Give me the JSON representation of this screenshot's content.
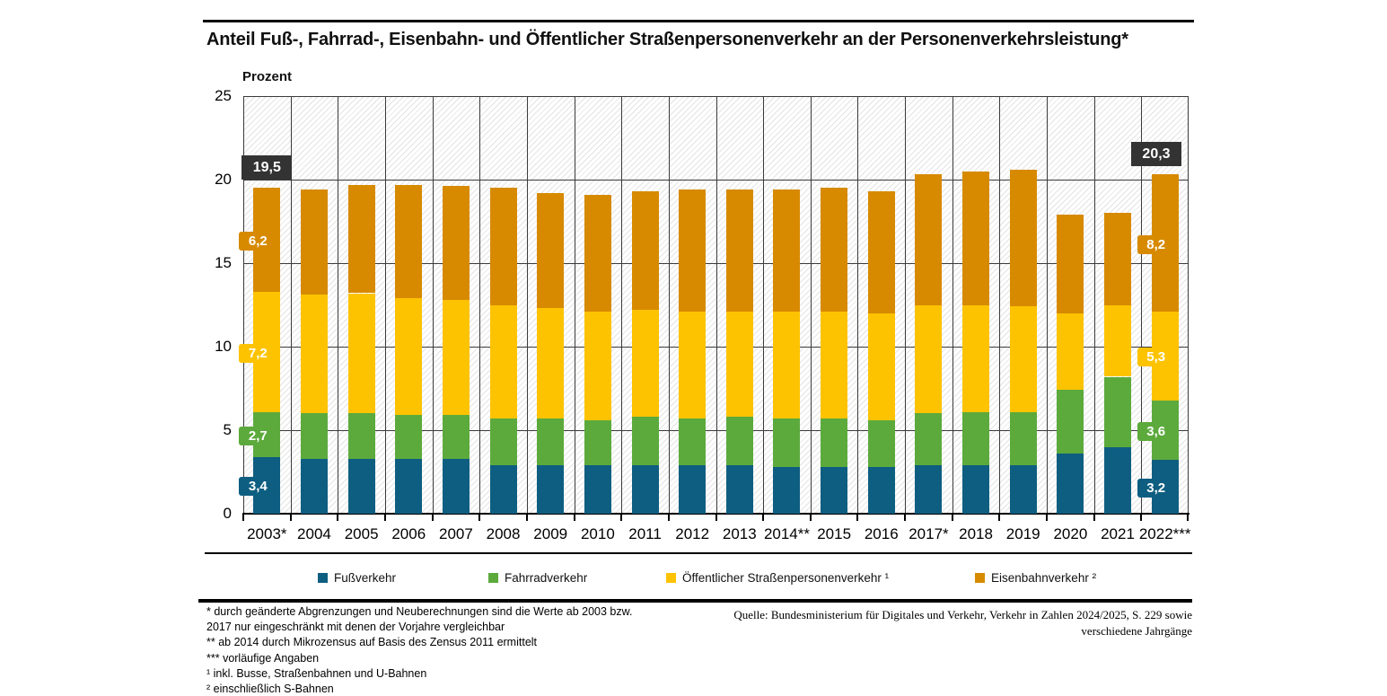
{
  "header": {
    "title": "Anteil Fuß-, Fahrrad-, Eisenbahn- und Öffentlicher Straßenpersonenverkehr an der Personenverkehrsleistung*"
  },
  "chart": {
    "y_axis_title": "Prozent"
  },
  "chart_data": {
    "type": "bar",
    "stacked": true,
    "title": "Anteil Fuß-, Fahrrad-, Eisenbahn- und Öffentlicher Straßenpersonenverkehr an der Personenverkehrsleistung*",
    "ylabel": "Prozent",
    "ylim": [
      0,
      25
    ],
    "yticks": [
      0,
      5,
      10,
      15,
      20,
      25
    ],
    "grid": true,
    "legend_position": "bottom",
    "categories": [
      "2003*",
      "2004",
      "2005",
      "2006",
      "2007",
      "2008",
      "2009",
      "2010",
      "2011",
      "2012",
      "2013",
      "2014**",
      "2015",
      "2016",
      "2017*",
      "2018",
      "2019",
      "2020",
      "2021",
      "2022***"
    ],
    "series": [
      {
        "key": "fussverkehr",
        "name": "Fußverkehr",
        "color": "#0e5e81",
        "values": [
          3.4,
          3.3,
          3.3,
          3.3,
          3.3,
          2.9,
          2.9,
          2.9,
          2.9,
          2.9,
          2.9,
          2.8,
          2.8,
          2.8,
          2.9,
          2.9,
          2.9,
          3.6,
          4.0,
          3.2
        ]
      },
      {
        "key": "fahrradverkehr",
        "name": "Fahrradverkehr",
        "color": "#5caa3c",
        "values": [
          2.7,
          2.7,
          2.7,
          2.6,
          2.6,
          2.8,
          2.8,
          2.7,
          2.9,
          2.8,
          2.9,
          2.9,
          2.9,
          2.8,
          3.1,
          3.2,
          3.2,
          3.8,
          4.2,
          3.6
        ]
      },
      {
        "key": "oespv",
        "name": "Öffentlicher Straßenpersonenverkehr ¹",
        "color": "#fdc300",
        "values": [
          7.2,
          7.1,
          7.2,
          7.0,
          6.9,
          6.8,
          6.6,
          6.5,
          6.4,
          6.4,
          6.3,
          6.4,
          6.4,
          6.4,
          6.5,
          6.4,
          6.3,
          4.6,
          4.3,
          5.3
        ]
      },
      {
        "key": "eisenbahnverkehr",
        "name": "Eisenbahnverkehr ²",
        "color": "#d78a00",
        "values": [
          6.2,
          6.3,
          6.5,
          6.8,
          6.8,
          7.0,
          6.9,
          7.0,
          7.1,
          7.3,
          7.3,
          7.3,
          7.4,
          7.3,
          7.8,
          8.0,
          8.2,
          5.9,
          5.5,
          8.2
        ]
      }
    ],
    "value_labels": {
      "2003*": {
        "total": "19,5",
        "segments": [
          "3,4",
          "2,7",
          "7,2",
          "6,2"
        ]
      },
      "2022***": {
        "total": "20,3",
        "segments": [
          "3,2",
          "3,6",
          "5,3",
          "8,2"
        ]
      }
    }
  },
  "colors": {
    "total_label_box": "#333333",
    "grid_line": "#3b3b3b",
    "hatch_line": "#e3e3e3"
  },
  "footnotes": [
    "* durch geänderte Abgrenzungen und Neuberechnungen sind die Werte ab 2003 bzw.",
    "2017 nur eingeschränkt mit denen der Vorjahre vergleichbar",
    "** ab 2014 durch Mikrozensus auf Basis des Zensus 2011 ermittelt",
    "*** vorläufige Angaben",
    "¹ inkl.  Busse, Straßenbahnen und U-Bahnen",
    "² einschließlich S-Bahnen"
  ],
  "footer": {
    "source_lines": [
      "Quelle: Bundesministerium für Digitales und Verkehr, Verkehr in Zahlen 2024/2025, S. 229 sowie",
      "verschiedene Jahrgänge"
    ]
  }
}
